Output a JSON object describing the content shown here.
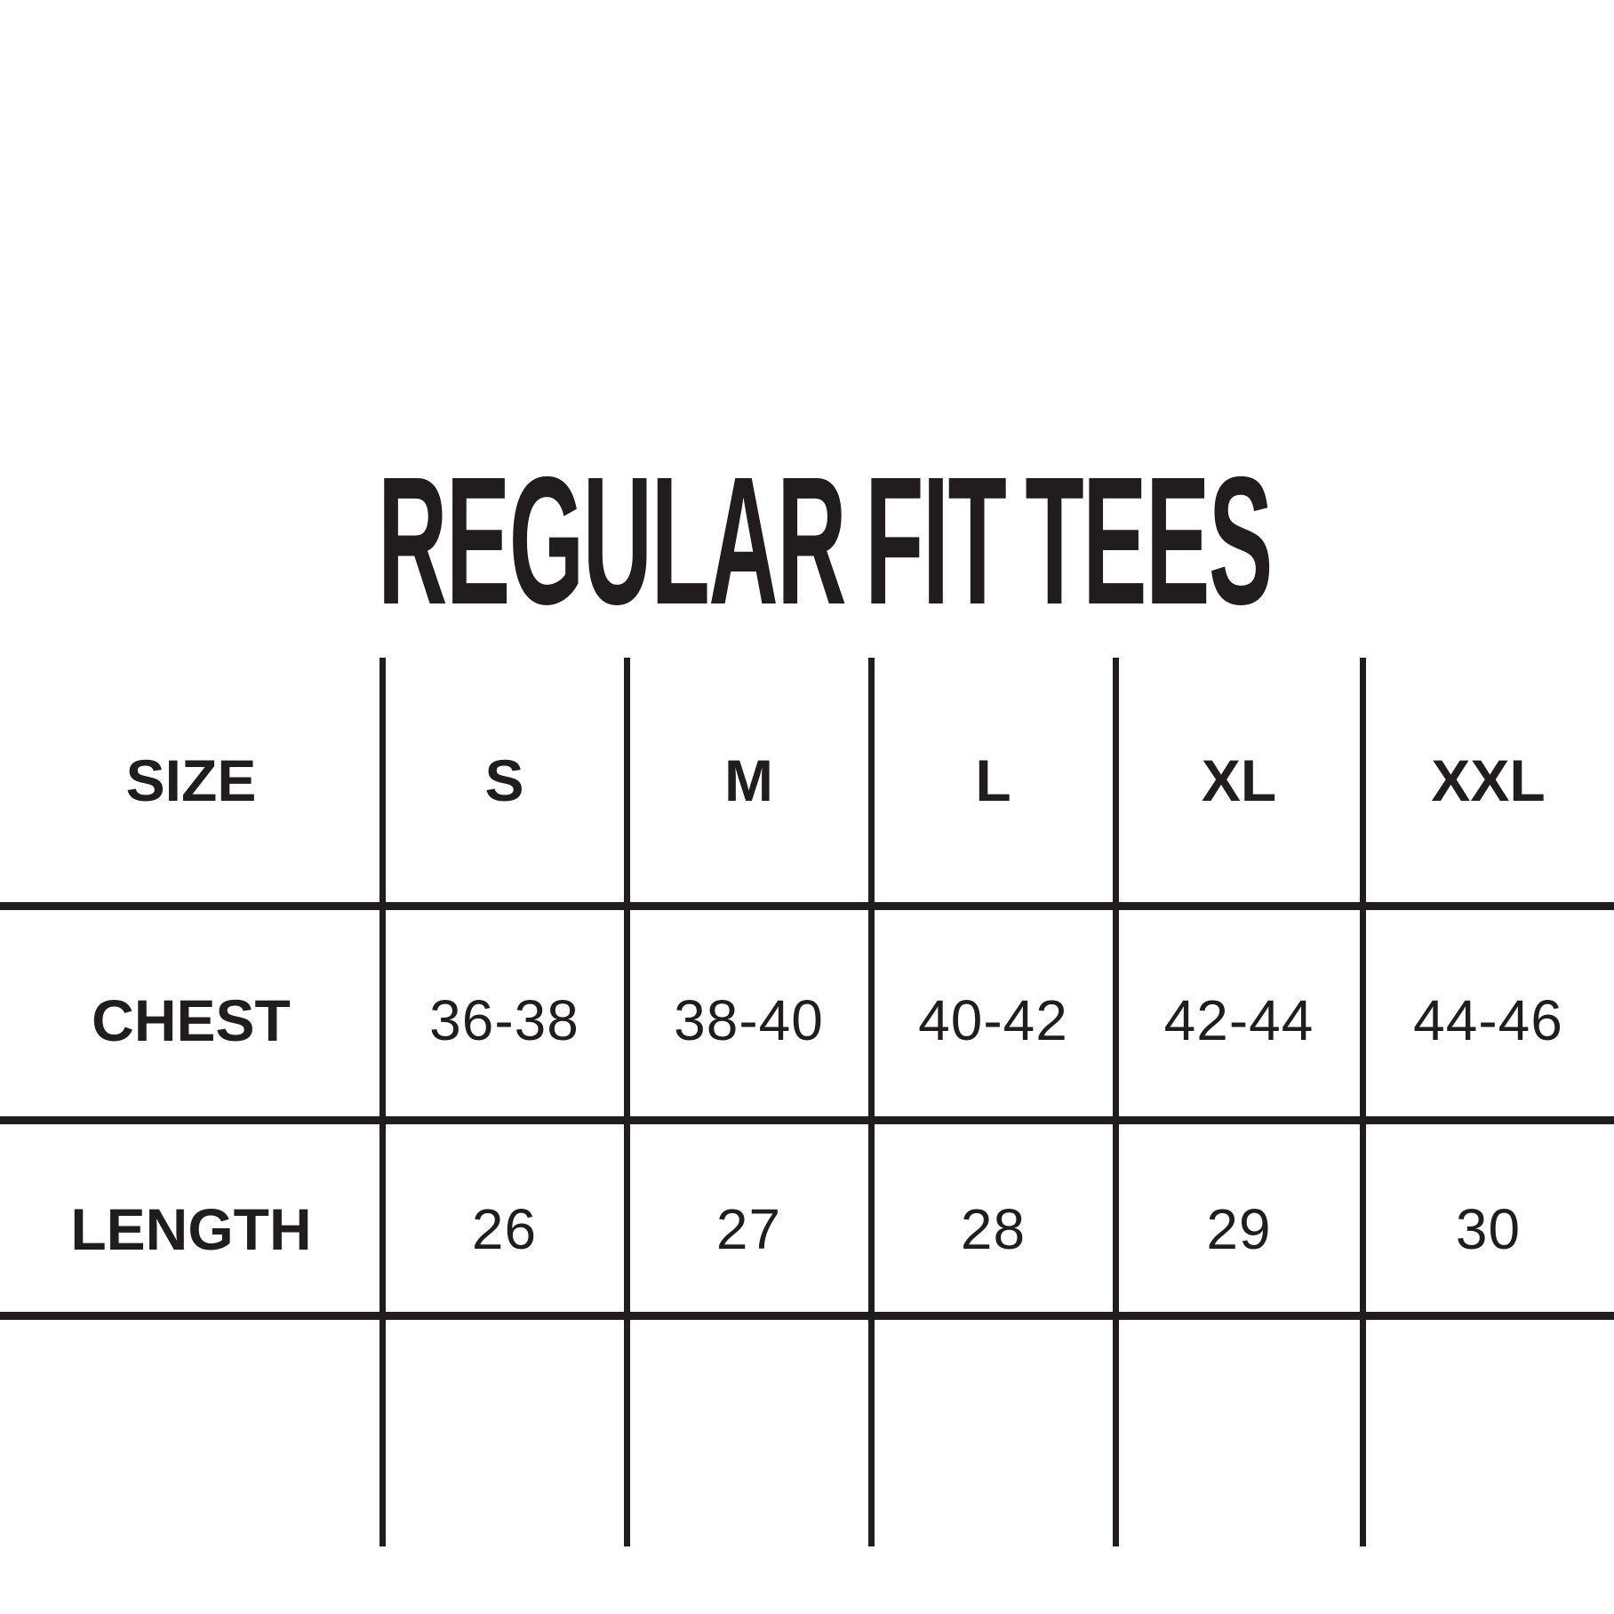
{
  "chart_data": {
    "type": "table",
    "title": "REGULAR FIT TEES",
    "columns": [
      "SIZE",
      "S",
      "M",
      "L",
      "XL",
      "XXL"
    ],
    "rows": [
      [
        "CHEST",
        "36-38",
        "38-40",
        "40-42",
        "42-44",
        "44-46"
      ],
      [
        "LENGTH",
        "26",
        "27",
        "28",
        "29",
        "30"
      ]
    ]
  },
  "colors": {
    "ink": "#211d1e",
    "background": "#ffffff"
  }
}
